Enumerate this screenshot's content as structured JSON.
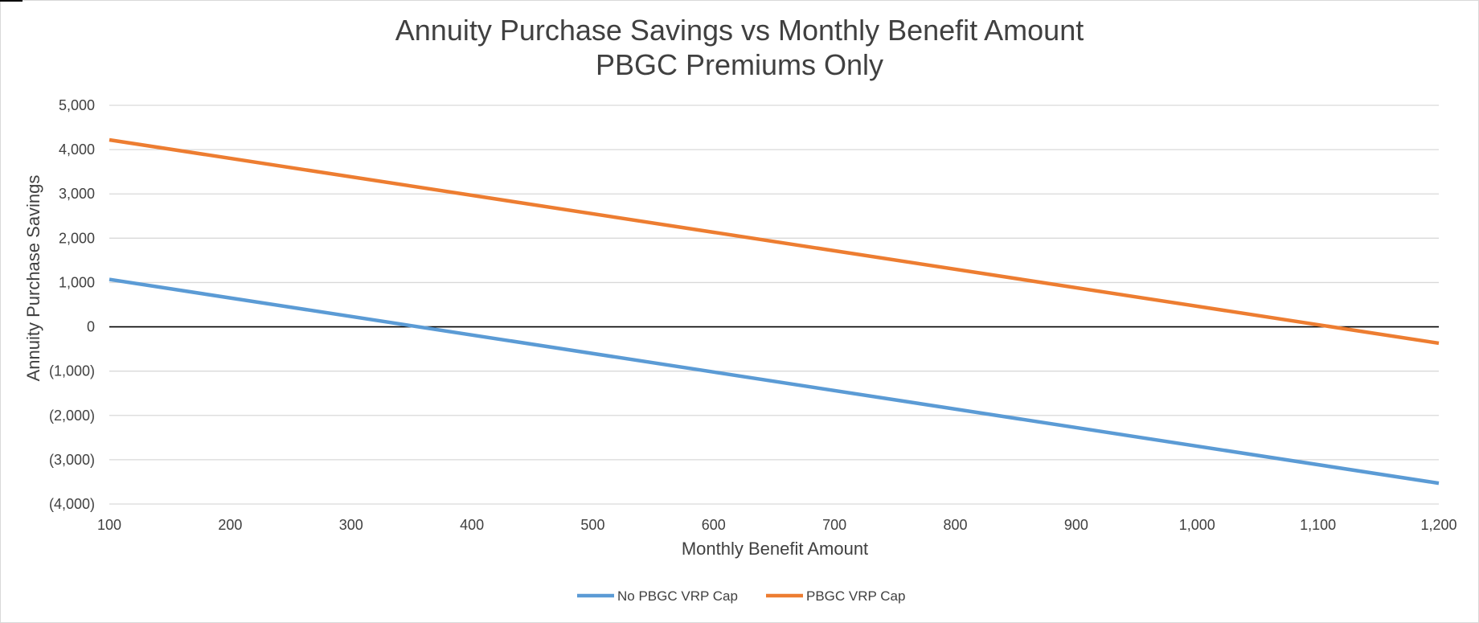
{
  "chart_data": {
    "type": "line",
    "title": "Annuity Purchase Savings vs Monthly Benefit Amount",
    "subtitle": "PBGC Premiums Only",
    "xlabel": "Monthly Benefit Amount",
    "ylabel": "Annuity Purchase Savings",
    "xlim": [
      100,
      1200
    ],
    "ylim": [
      -4000,
      5000
    ],
    "x_ticks": [
      100,
      200,
      300,
      400,
      500,
      600,
      700,
      800,
      900,
      1000,
      1100,
      1200
    ],
    "x_tick_labels": [
      "100",
      "200",
      "300",
      "400",
      "500",
      "600",
      "700",
      "800",
      "900",
      "1,000",
      "1,100",
      "1,200"
    ],
    "y_ticks": [
      5000,
      4000,
      3000,
      2000,
      1000,
      0,
      -1000,
      -2000,
      -3000,
      -4000
    ],
    "y_tick_labels": [
      "5,000",
      "4,000",
      "3,000",
      "2,000",
      "1,000",
      "0",
      "(1,000)",
      "(2,000)",
      "(3,000)",
      "(4,000)"
    ],
    "grid": true,
    "legend_position": "bottom",
    "x": [
      100,
      1200
    ],
    "series": [
      {
        "name": "No PBGC VRP Cap",
        "color": "#5b9bd5",
        "values": [
          1070,
          -3530
        ]
      },
      {
        "name": "PBGC VRP Cap",
        "color": "#ed7d31",
        "values": [
          4220,
          -370
        ]
      }
    ]
  }
}
